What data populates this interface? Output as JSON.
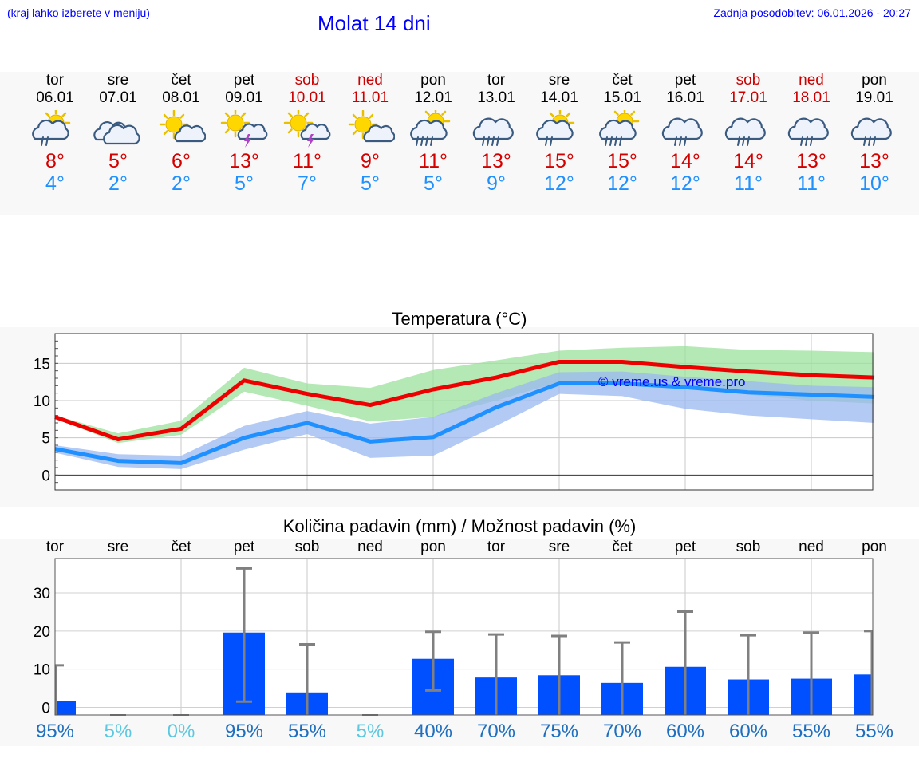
{
  "header": {
    "hint": "(kraj lahko izberete v meniju)",
    "title": "Molat 14 dni",
    "updated": "Zadnja posodobitev: 06.01.2026 - 20:27"
  },
  "days": [
    {
      "name": "tor",
      "date": "06.01",
      "weekend": false,
      "icon": "sun-cloud-rain-icon",
      "tmax": "8°",
      "tmin": "4°"
    },
    {
      "name": "sre",
      "date": "07.01",
      "weekend": false,
      "icon": "cloudy-icon",
      "tmax": "5°",
      "tmin": "2°"
    },
    {
      "name": "čet",
      "date": "08.01",
      "weekend": false,
      "icon": "sun-cloud-icon",
      "tmax": "6°",
      "tmin": "2°"
    },
    {
      "name": "pet",
      "date": "09.01",
      "weekend": false,
      "icon": "sun-thunderstorm-icon",
      "tmax": "13°",
      "tmin": "5°"
    },
    {
      "name": "sob",
      "date": "10.01",
      "weekend": true,
      "icon": "sun-thunderstorm-icon",
      "tmax": "11°",
      "tmin": "7°"
    },
    {
      "name": "ned",
      "date": "11.01",
      "weekend": true,
      "icon": "sun-cloud-icon",
      "tmax": "9°",
      "tmin": "5°"
    },
    {
      "name": "pon",
      "date": "12.01",
      "weekend": false,
      "icon": "sun-cloud-heavy-rain-icon",
      "tmax": "11°",
      "tmin": "5°"
    },
    {
      "name": "tor",
      "date": "13.01",
      "weekend": false,
      "icon": "cloud-heavy-rain-icon",
      "tmax": "13°",
      "tmin": "9°"
    },
    {
      "name": "sre",
      "date": "14.01",
      "weekend": false,
      "icon": "sun-cloud-rain-icon",
      "tmax": "15°",
      "tmin": "12°"
    },
    {
      "name": "čet",
      "date": "15.01",
      "weekend": false,
      "icon": "sun-cloud-heavy-rain-icon",
      "tmax": "15°",
      "tmin": "12°"
    },
    {
      "name": "pet",
      "date": "16.01",
      "weekend": false,
      "icon": "cloud-rain-icon",
      "tmax": "14°",
      "tmin": "12°"
    },
    {
      "name": "sob",
      "date": "17.01",
      "weekend": true,
      "icon": "cloud-rain-icon",
      "tmax": "14°",
      "tmin": "11°"
    },
    {
      "name": "ned",
      "date": "18.01",
      "weekend": true,
      "icon": "cloud-rain-icon",
      "tmax": "13°",
      "tmin": "11°"
    },
    {
      "name": "pon",
      "date": "19.01",
      "weekend": false,
      "icon": "cloud-rain-icon",
      "tmax": "13°",
      "tmin": "10°"
    }
  ],
  "colors": {
    "title": "#0000ff",
    "weekend": "#cc0000",
    "tmax": "#d40000",
    "tmin": "#1e90ff",
    "max_line": "#ee0000",
    "min_line": "#1e90ff",
    "max_band": "#9be09b",
    "min_band": "#9ab8f0",
    "bar": "#0050ff",
    "errbar": "#808080",
    "pct_high": "#1f6fc0",
    "pct_low": "#5cc8e0"
  },
  "chart_data": [
    {
      "type": "line",
      "title": "Temperatura (°C)",
      "ylabel": "°C",
      "ylim": [
        -2,
        19
      ],
      "yticks": [
        0,
        5,
        10,
        15
      ],
      "watermark": "© vreme.us & vreme.pro",
      "categories": [
        "06.01",
        "07.01",
        "08.01",
        "09.01",
        "10.01",
        "11.01",
        "12.01",
        "13.01",
        "14.01",
        "15.01",
        "16.01",
        "17.01",
        "18.01",
        "19.01"
      ],
      "series": [
        {
          "name": "max",
          "values": [
            7.8,
            4.8,
            6.2,
            12.7,
            10.9,
            9.4,
            11.5,
            13.1,
            15.2,
            15.2,
            14.5,
            13.9,
            13.4,
            13.1
          ],
          "band_low": [
            7.6,
            4.3,
            5.4,
            11.2,
            9.3,
            7.2,
            7.8,
            10.0,
            12.5,
            12.4,
            11.6,
            10.8,
            10.0,
            9.6
          ],
          "band_high": [
            8.0,
            5.6,
            7.3,
            14.4,
            12.3,
            11.7,
            14.1,
            15.4,
            16.7,
            17.1,
            17.3,
            16.8,
            16.7,
            16.5
          ]
        },
        {
          "name": "min",
          "values": [
            3.5,
            1.9,
            1.6,
            5.0,
            7.0,
            4.5,
            5.1,
            9.1,
            12.3,
            12.3,
            11.8,
            11.1,
            10.8,
            10.5
          ],
          "band_low": [
            3.0,
            1.1,
            0.8,
            3.4,
            5.5,
            2.3,
            2.6,
            6.6,
            10.9,
            10.6,
            8.9,
            8.0,
            7.5,
            7.0
          ],
          "band_high": [
            4.0,
            2.8,
            2.6,
            6.6,
            8.6,
            6.9,
            7.8,
            11.0,
            13.8,
            13.9,
            13.2,
            12.6,
            12.0,
            11.8
          ]
        }
      ]
    },
    {
      "type": "bar",
      "title": "Količina padavin (mm) / Možnost padavin (%)",
      "ylabel": "mm",
      "ylim": [
        -2,
        39
      ],
      "yticks": [
        0,
        10,
        20,
        30
      ],
      "categories": [
        "tor",
        "sre",
        "čet",
        "pet",
        "sob",
        "ned",
        "pon",
        "tor",
        "sre",
        "čet",
        "pet",
        "sob",
        "ned",
        "pon"
      ],
      "values": [
        1.6,
        0,
        0,
        19.6,
        3.9,
        0,
        12.7,
        7.8,
        8.4,
        6.4,
        10.6,
        7.3,
        7.5,
        8.6
      ],
      "err_low": [
        0,
        0,
        0,
        1.5,
        0,
        0,
        4.4,
        0,
        0,
        0,
        0,
        0,
        0,
        0
      ],
      "err_high": [
        11.0,
        0,
        0,
        36.4,
        16.5,
        0,
        19.8,
        19.1,
        18.7,
        17.0,
        25.1,
        18.9,
        19.6,
        20.0
      ],
      "probability": [
        "95%",
        "5%",
        "0%",
        "95%",
        "55%",
        "5%",
        "40%",
        "70%",
        "75%",
        "70%",
        "60%",
        "60%",
        "55%",
        "55%"
      ]
    }
  ]
}
